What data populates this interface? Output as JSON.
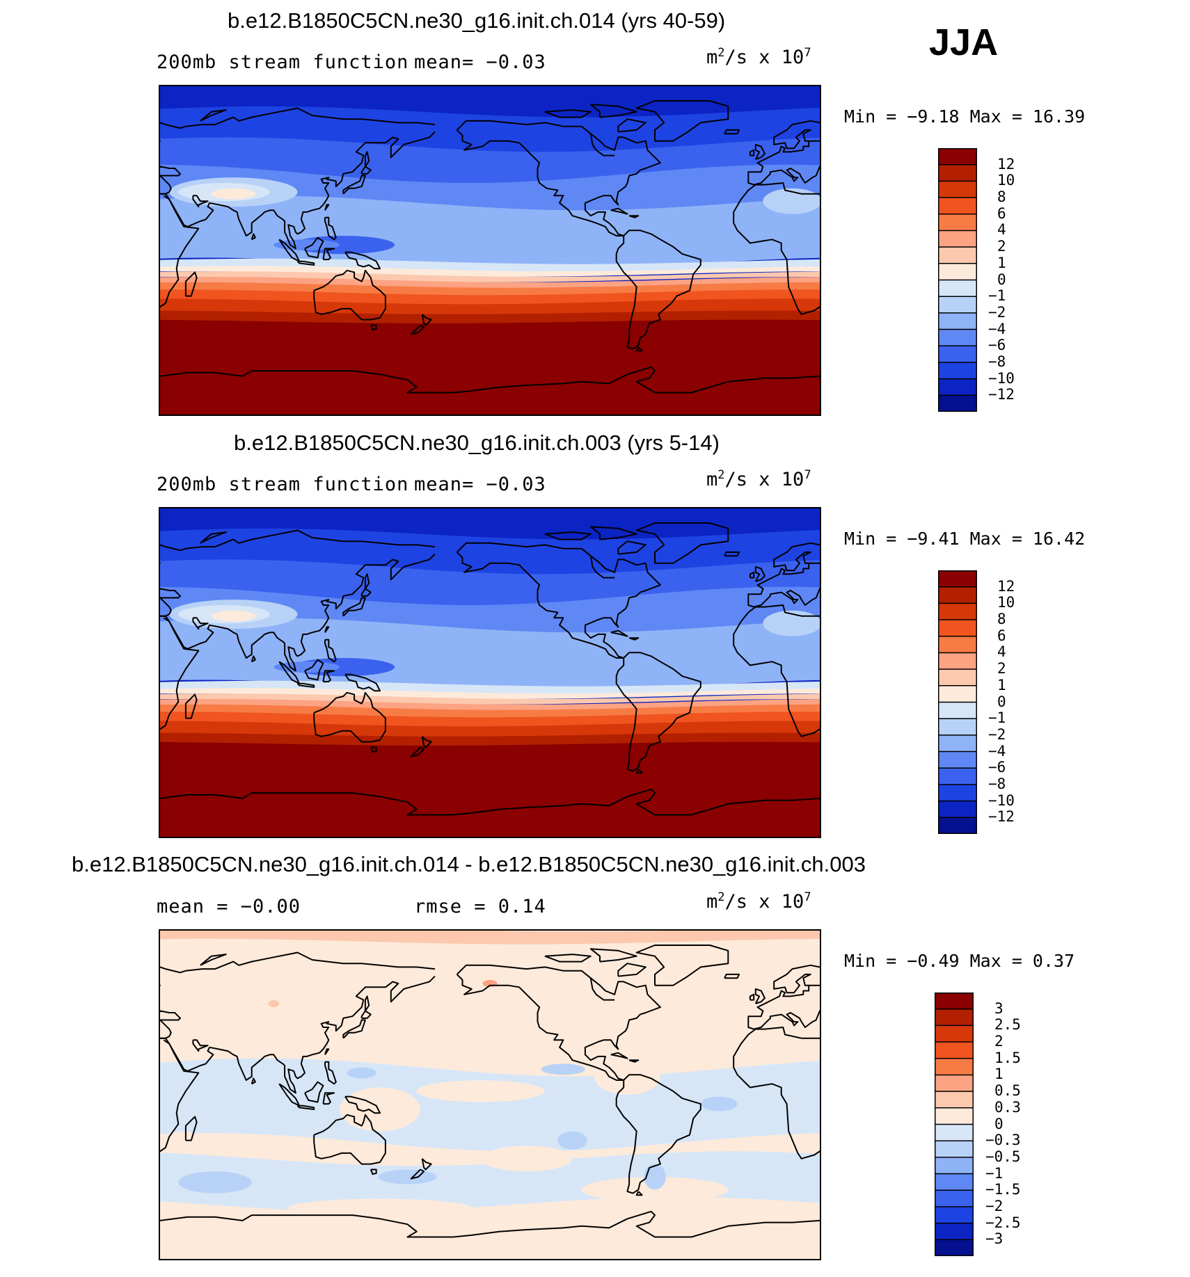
{
  "season": "JJA",
  "panels": [
    {
      "title": "b.e12.B1850C5CN.ne30_g16.init.ch.014 (yrs 40-59)",
      "left_text": "200mb stream function",
      "mean_text": "mean=   −0.03",
      "units_base": "m",
      "units_exp": "2",
      "units_mid": "/s x 10",
      "units_pow": "7",
      "minmax": "Min =   −9.18  Max =   16.39",
      "colorbar_labels": [
        "12",
        "10",
        "8",
        "6",
        "4",
        "2",
        "1",
        "0",
        "−1",
        "−2",
        "−4",
        "−6",
        "−8",
        "−10",
        "−12"
      ]
    },
    {
      "title": "b.e12.B1850C5CN.ne30_g16.init.ch.003 (yrs 5-14)",
      "left_text": "200mb stream function",
      "mean_text": "mean=   −0.03",
      "units_base": "m",
      "units_exp": "2",
      "units_mid": "/s x 10",
      "units_pow": "7",
      "minmax": "Min =   −9.41  Max =   16.42",
      "colorbar_labels": [
        "12",
        "10",
        "8",
        "6",
        "4",
        "2",
        "1",
        "0",
        "−1",
        "−2",
        "−4",
        "−6",
        "−8",
        "−10",
        "−12"
      ]
    },
    {
      "title": "b.e12.B1850C5CN.ne30_g16.init.ch.014 - b.e12.B1850C5CN.ne30_g16.init.ch.003",
      "left_text": "mean =   −0.00",
      "mean_text": "rmse =    0.14",
      "units_base": "m",
      "units_exp": "2",
      "units_mid": "/s x 10",
      "units_pow": "7",
      "minmax": "Min =   −0.49  Max =    0.37",
      "colorbar_labels": [
        "3",
        "2.5",
        "2",
        "1.5",
        "1",
        "0.5",
        "0.3",
        "0",
        "−0.3",
        "−0.5",
        "−1",
        "−1.5",
        "−2",
        "−2.5",
        "−3"
      ]
    }
  ],
  "colors": {
    "palette": [
      "#8b0000",
      "#b22000",
      "#d6380a",
      "#f0541f",
      "#f77b45",
      "#fba383",
      "#fcc9ae",
      "#fdeadb",
      "#d6e6f7",
      "#b8d2f7",
      "#8fb3f7",
      "#5f88f5",
      "#3a62ee",
      "#1e43e3",
      "#0c24c4",
      "#05118f"
    ]
  },
  "chart_data": [
    {
      "type": "heatmap",
      "title": "b.e12.B1850C5CN.ne30_g16.init.ch.014 (yrs 40-59)",
      "variable": "200mb stream function",
      "season": "JJA",
      "units": "m^2/s x 10^7",
      "mean": -0.03,
      "min": -9.18,
      "max": 16.39,
      "contour_levels": [
        -12,
        -10,
        -8,
        -6,
        -4,
        -2,
        -1,
        0,
        1,
        2,
        4,
        6,
        8,
        10,
        12
      ],
      "zonal_structure": [
        {
          "lat": 85,
          "value": -10
        },
        {
          "lat": 60,
          "value": -8
        },
        {
          "lat": 40,
          "value": -4
        },
        {
          "lat": 25,
          "value": -2
        },
        {
          "lat": 0,
          "value": -1
        },
        {
          "lat": -10,
          "value": 0
        },
        {
          "lat": -25,
          "value": 6
        },
        {
          "lat": -45,
          "value": 12
        },
        {
          "lat": -80,
          "value": 14
        }
      ]
    },
    {
      "type": "heatmap",
      "title": "b.e12.B1850C5CN.ne30_g16.init.ch.003 (yrs 5-14)",
      "variable": "200mb stream function",
      "season": "JJA",
      "units": "m^2/s x 10^7",
      "mean": -0.03,
      "min": -9.41,
      "max": 16.42,
      "contour_levels": [
        -12,
        -10,
        -8,
        -6,
        -4,
        -2,
        -1,
        0,
        1,
        2,
        4,
        6,
        8,
        10,
        12
      ],
      "zonal_structure": [
        {
          "lat": 85,
          "value": -10
        },
        {
          "lat": 60,
          "value": -8
        },
        {
          "lat": 40,
          "value": -4
        },
        {
          "lat": 25,
          "value": -2
        },
        {
          "lat": 0,
          "value": -1
        },
        {
          "lat": -10,
          "value": 0
        },
        {
          "lat": -25,
          "value": 6
        },
        {
          "lat": -45,
          "value": 12
        },
        {
          "lat": -80,
          "value": 14
        }
      ]
    },
    {
      "type": "heatmap",
      "title": "b.e12.B1850C5CN.ne30_g16.init.ch.014 - b.e12.B1850C5CN.ne30_g16.init.ch.003",
      "units": "m^2/s x 10^7",
      "mean": -0.0,
      "rmse": 0.14,
      "min": -0.49,
      "max": 0.37,
      "contour_levels": [
        -3,
        -2.5,
        -2,
        -1.5,
        -1,
        -0.5,
        -0.3,
        0,
        0.3,
        0.5,
        1,
        1.5,
        2,
        2.5,
        3
      ]
    }
  ]
}
